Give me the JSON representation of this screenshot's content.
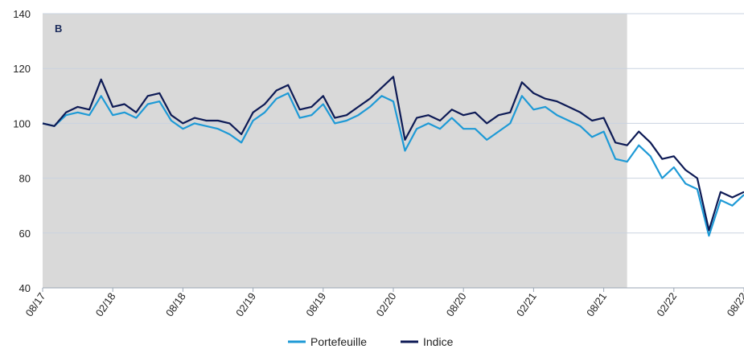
{
  "chart_data": {
    "type": "line",
    "title": "",
    "xlabel": "",
    "ylabel": "",
    "ylim": [
      40,
      140
    ],
    "y_ticks": [
      40,
      60,
      80,
      100,
      120,
      140
    ],
    "x_ticks": [
      "08/17",
      "02/18",
      "08/18",
      "02/19",
      "08/19",
      "02/20",
      "08/20",
      "02/21",
      "08/21",
      "02/22",
      "08/22"
    ],
    "grid": "horizontal",
    "legend": "bottom-center",
    "overlay_label": "B",
    "shaded_region": {
      "from": "08/17",
      "to": "10/21",
      "color": "#d9d9d9"
    },
    "series": [
      {
        "name": "Portefeuille",
        "color": "#1e9ad6",
        "x": [
          "08/17",
          "09/17",
          "10/17",
          "11/17",
          "12/17",
          "01/18",
          "02/18",
          "03/18",
          "04/18",
          "05/18",
          "06/18",
          "07/18",
          "08/18",
          "09/18",
          "10/18",
          "11/18",
          "12/18",
          "01/19",
          "02/19",
          "03/19",
          "04/19",
          "05/19",
          "06/19",
          "07/19",
          "08/19",
          "09/19",
          "10/19",
          "11/19",
          "12/19",
          "01/20",
          "02/20",
          "03/20",
          "04/20",
          "05/20",
          "06/20",
          "07/20",
          "08/20",
          "09/20",
          "10/20",
          "11/20",
          "12/20",
          "01/21",
          "02/21",
          "03/21",
          "04/21",
          "05/21",
          "06/21",
          "07/21",
          "08/21",
          "09/21",
          "10/21",
          "11/21",
          "12/21",
          "01/22",
          "02/22",
          "03/22",
          "04/22",
          "05/22",
          "06/22",
          "07/22",
          "08/22"
        ],
        "values": [
          100,
          99,
          103,
          104,
          103,
          110,
          103,
          104,
          102,
          107,
          108,
          101,
          98,
          100,
          99,
          98,
          96,
          93,
          101,
          104,
          109,
          111,
          102,
          103,
          107,
          100,
          101,
          103,
          106,
          110,
          108,
          90,
          98,
          100,
          98,
          102,
          98,
          98,
          94,
          97,
          100,
          110,
          105,
          106,
          103,
          101,
          99,
          95,
          97,
          87,
          86,
          92,
          88,
          80,
          84,
          78,
          76,
          59,
          72,
          70,
          74
        ]
      },
      {
        "name": "Indice",
        "color": "#0d1a55",
        "x": [
          "08/17",
          "09/17",
          "10/17",
          "11/17",
          "12/17",
          "01/18",
          "02/18",
          "03/18",
          "04/18",
          "05/18",
          "06/18",
          "07/18",
          "08/18",
          "09/18",
          "10/18",
          "11/18",
          "12/18",
          "01/19",
          "02/19",
          "03/19",
          "04/19",
          "05/19",
          "06/19",
          "07/19",
          "08/19",
          "09/19",
          "10/19",
          "11/19",
          "12/19",
          "01/20",
          "02/20",
          "03/20",
          "04/20",
          "05/20",
          "06/20",
          "07/20",
          "08/20",
          "09/20",
          "10/20",
          "11/20",
          "12/20",
          "01/21",
          "02/21",
          "03/21",
          "04/21",
          "05/21",
          "06/21",
          "07/21",
          "08/21",
          "09/21",
          "10/21",
          "11/21",
          "12/21",
          "01/22",
          "02/22",
          "03/22",
          "04/22",
          "05/22",
          "06/22",
          "07/22",
          "08/22"
        ],
        "values": [
          100,
          99,
          104,
          106,
          105,
          116,
          106,
          107,
          104,
          110,
          111,
          103,
          100,
          102,
          101,
          101,
          100,
          96,
          104,
          107,
          112,
          114,
          105,
          106,
          110,
          102,
          103,
          106,
          109,
          113,
          117,
          94,
          102,
          103,
          101,
          105,
          103,
          104,
          100,
          103,
          104,
          115,
          111,
          109,
          108,
          106,
          104,
          101,
          102,
          93,
          92,
          97,
          93,
          87,
          88,
          83,
          80,
          61,
          75,
          73,
          75
        ]
      }
    ]
  }
}
